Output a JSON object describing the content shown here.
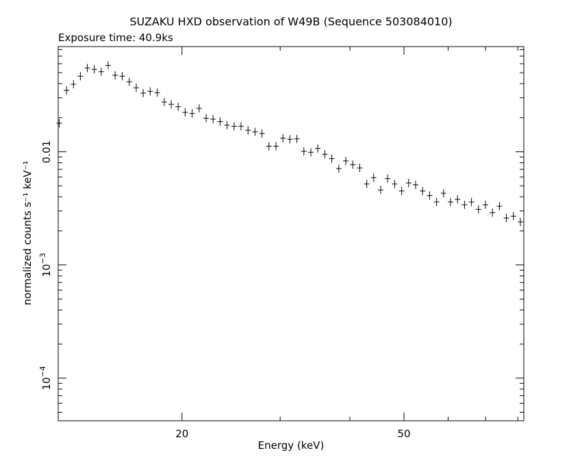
{
  "chart_data": {
    "type": "scatter",
    "title": "SUZAKU HXD observation of W49B (Sequence 503084010)",
    "subtitle": "Exposure time: 40.9ks",
    "xlabel": "Energy (keV)",
    "ylabel": "normalized counts s⁻¹ keV⁻¹",
    "xscale": "log",
    "yscale": "log",
    "xlim": [
      12.0,
      82.0
    ],
    "ylim": [
      4.2e-05,
      0.085
    ],
    "x_ticks": [
      {
        "value": 20,
        "label": "20"
      },
      {
        "value": 50,
        "label": "50"
      }
    ],
    "y_ticks": [
      {
        "value": 0.0001,
        "label": "10",
        "exp": "−4"
      },
      {
        "value": 0.001,
        "label": "10",
        "exp": "−3"
      },
      {
        "value": 0.01,
        "label": "0.01",
        "exp": ""
      }
    ],
    "grid": false,
    "legend": "none",
    "series": [
      {
        "points": [
          [
            12.05,
            0.0179
          ],
          [
            12.42,
            0.0349
          ],
          [
            12.78,
            0.0395
          ],
          [
            13.15,
            0.0465
          ],
          [
            13.53,
            0.055
          ],
          [
            13.93,
            0.0535
          ],
          [
            14.33,
            0.051
          ],
          [
            14.75,
            0.058
          ],
          [
            15.18,
            0.0475
          ],
          [
            15.63,
            0.0465
          ],
          [
            16.09,
            0.0415
          ],
          [
            16.56,
            0.0368
          ],
          [
            17.04,
            0.033
          ],
          [
            17.54,
            0.0342
          ],
          [
            18.06,
            0.0333
          ],
          [
            18.59,
            0.0275
          ],
          [
            19.13,
            0.0263
          ],
          [
            19.69,
            0.025
          ],
          [
            20.26,
            0.0223
          ],
          [
            20.86,
            0.0218
          ],
          [
            21.47,
            0.0242
          ],
          [
            22.1,
            0.0198
          ],
          [
            22.74,
            0.0194
          ],
          [
            23.41,
            0.0185
          ],
          [
            24.09,
            0.0172
          ],
          [
            24.8,
            0.0168
          ],
          [
            25.52,
            0.0168
          ],
          [
            26.27,
            0.0155
          ],
          [
            27.04,
            0.015
          ],
          [
            27.83,
            0.0145
          ],
          [
            28.64,
            0.0112
          ],
          [
            29.48,
            0.0112
          ],
          [
            30.34,
            0.0132
          ],
          [
            31.23,
            0.0129
          ],
          [
            32.14,
            0.013
          ],
          [
            33.08,
            0.0101
          ],
          [
            34.05,
            0.0099
          ],
          [
            35.04,
            0.0107
          ],
          [
            36.07,
            0.0095
          ],
          [
            37.12,
            0.0087
          ],
          [
            38.21,
            0.0071
          ],
          [
            39.33,
            0.0083
          ],
          [
            40.48,
            0.0077
          ],
          [
            41.66,
            0.0072
          ],
          [
            42.88,
            0.0052
          ],
          [
            44.13,
            0.0059
          ],
          [
            45.42,
            0.0046
          ],
          [
            46.75,
            0.0058
          ],
          [
            48.12,
            0.0052
          ],
          [
            49.53,
            0.0045
          ],
          [
            50.98,
            0.0053
          ],
          [
            52.47,
            0.0051
          ],
          [
            54.0,
            0.0045
          ],
          [
            55.58,
            0.0041
          ],
          [
            57.21,
            0.0036
          ],
          [
            58.88,
            0.0043
          ],
          [
            60.6,
            0.0036
          ],
          [
            62.37,
            0.0038
          ],
          [
            64.2,
            0.0034
          ],
          [
            66.08,
            0.0036
          ],
          [
            68.01,
            0.0031
          ],
          [
            70.0,
            0.0034
          ],
          [
            72.05,
            0.0029
          ],
          [
            74.16,
            0.0033
          ],
          [
            76.32,
            0.0026
          ],
          [
            78.56,
            0.0027
          ],
          [
            80.85,
            0.0024
          ]
        ]
      }
    ]
  }
}
